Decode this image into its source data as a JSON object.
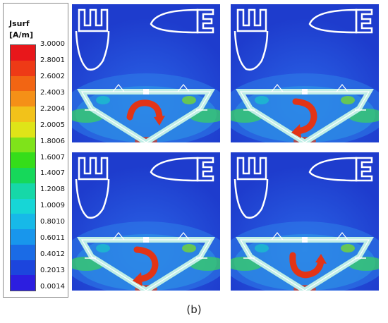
{
  "legend": {
    "quantity": "Jsurf",
    "unit": "[A/m]",
    "ticks": [
      "3.0000",
      "2.8001",
      "2.6002",
      "2.4003",
      "2.2004",
      "2.0005",
      "1.8006",
      "1.6007",
      "1.4007",
      "1.2008",
      "1.0009",
      "0.8010",
      "0.6011",
      "0.4012",
      "0.2013",
      "0.0014"
    ],
    "colors": [
      "#e8171b",
      "#ee3a16",
      "#f26513",
      "#f59017",
      "#f2c21a",
      "#dfe418",
      "#7fe31a",
      "#35dd1a",
      "#16d85a",
      "#16d8a8",
      "#17d6d6",
      "#17b9e8",
      "#1896ec",
      "#1a6be6",
      "#1c45dd",
      "#2c1ee0"
    ]
  },
  "panels": [
    {
      "id": "top-left",
      "arrow": "clockwise-arc",
      "arrow_color": "#e23416"
    },
    {
      "id": "top-right",
      "arrow": "hook-down",
      "arrow_color": "#e23416"
    },
    {
      "id": "bottom-left",
      "arrow": "hook-down",
      "arrow_color": "#e23416"
    },
    {
      "id": "bottom-right",
      "arrow": "u-turn-right",
      "arrow_color": "#e23416"
    }
  ],
  "caption": "(b)"
}
